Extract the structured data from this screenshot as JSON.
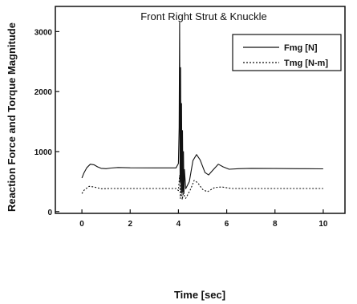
{
  "chart_data": {
    "type": "line",
    "title": "Front Right Strut & Knuckle",
    "xlabel": "Time [sec]",
    "ylabel": "Reaction Force and Torque Magnitude",
    "xlim": [
      -1.1,
      10.9
    ],
    "ylim": [
      -30,
      3420
    ],
    "xticks": [
      0,
      2,
      4,
      6,
      8,
      10
    ],
    "yticks": [
      0,
      1000,
      2000,
      3000
    ],
    "x_tick_labels": [
      "0",
      "2",
      "4",
      "6",
      "8",
      "10"
    ],
    "y_tick_labels": [
      "0",
      "1000",
      "2000",
      "3000"
    ],
    "grid": false,
    "legend_position": "top-right",
    "series": [
      {
        "name": "Fmg [N]",
        "style": "solid",
        "color": "#111111",
        "points": [
          [
            0,
            560
          ],
          [
            0.08,
            640
          ],
          [
            0.2,
            730
          ],
          [
            0.35,
            790
          ],
          [
            0.5,
            780
          ],
          [
            0.65,
            745
          ],
          [
            0.8,
            720
          ],
          [
            1.0,
            715
          ],
          [
            1.2,
            725
          ],
          [
            1.5,
            735
          ],
          [
            2.0,
            730
          ],
          [
            3.0,
            728
          ],
          [
            3.9,
            728
          ],
          [
            4.0,
            800
          ],
          [
            4.03,
            1400
          ],
          [
            4.05,
            3150
          ],
          [
            4.07,
            500
          ],
          [
            4.09,
            2400
          ],
          [
            4.11,
            350
          ],
          [
            4.13,
            1800
          ],
          [
            4.15,
            300
          ],
          [
            4.17,
            1350
          ],
          [
            4.19,
            320
          ],
          [
            4.21,
            1000
          ],
          [
            4.23,
            300
          ],
          [
            4.25,
            700
          ],
          [
            4.3,
            380
          ],
          [
            4.45,
            500
          ],
          [
            4.6,
            850
          ],
          [
            4.75,
            950
          ],
          [
            4.9,
            860
          ],
          [
            5.1,
            650
          ],
          [
            5.25,
            610
          ],
          [
            5.45,
            700
          ],
          [
            5.65,
            790
          ],
          [
            5.85,
            745
          ],
          [
            6.1,
            705
          ],
          [
            6.5,
            715
          ],
          [
            7.0,
            720
          ],
          [
            8.0,
            718
          ],
          [
            9.0,
            715
          ],
          [
            10.0,
            712
          ]
        ]
      },
      {
        "name": "Tmg [N-m]",
        "style": "dotted",
        "color": "#111111",
        "points": [
          [
            0,
            300
          ],
          [
            0.1,
            360
          ],
          [
            0.3,
            420
          ],
          [
            0.5,
            410
          ],
          [
            0.8,
            380
          ],
          [
            1.2,
            385
          ],
          [
            2.0,
            385
          ],
          [
            3.0,
            385
          ],
          [
            3.9,
            385
          ],
          [
            4.0,
            350
          ],
          [
            4.05,
            600
          ],
          [
            4.08,
            220
          ],
          [
            4.12,
            380
          ],
          [
            4.16,
            200
          ],
          [
            4.2,
            300
          ],
          [
            4.3,
            220
          ],
          [
            4.5,
            370
          ],
          [
            4.65,
            520
          ],
          [
            4.8,
            480
          ],
          [
            5.0,
            370
          ],
          [
            5.2,
            330
          ],
          [
            5.5,
            400
          ],
          [
            5.8,
            410
          ],
          [
            6.2,
            385
          ],
          [
            7.0,
            385
          ],
          [
            8.0,
            385
          ],
          [
            9.0,
            385
          ],
          [
            10.0,
            385
          ]
        ]
      }
    ]
  }
}
